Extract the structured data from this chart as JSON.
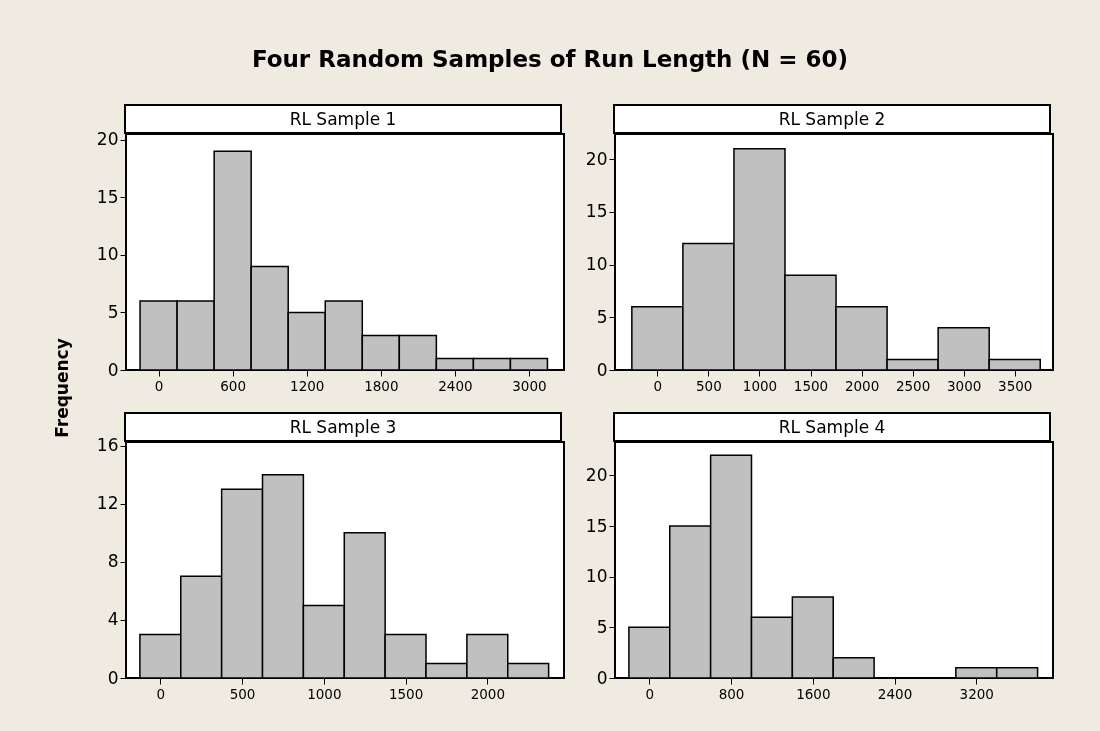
{
  "chart_data": [
    {
      "type": "histogram",
      "title": "RL Sample 1",
      "ylabel": "Frequency",
      "annotations": [
        "Four Random Samples of Run Length (N = 60)"
      ],
      "bins": [
        -150,
        150,
        450,
        750,
        1050,
        1350,
        1650,
        1950,
        2250,
        2550,
        2850,
        3150
      ],
      "values": [
        6,
        6,
        19,
        9,
        5,
        6,
        3,
        3,
        1,
        1,
        1
      ],
      "color": "#c0c0c0",
      "xlim": [
        -264,
        3284
      ],
      "ylim": [
        0,
        20.5
      ],
      "xticks": [
        0,
        600,
        1200,
        1800,
        2400,
        3000
      ],
      "yticks": [
        0,
        5,
        10,
        15,
        20
      ]
    },
    {
      "type": "histogram",
      "title": "RL Sample 2",
      "bins": [
        -250,
        250,
        750,
        1250,
        1750,
        2250,
        2750,
        3250,
        3750
      ],
      "values": [
        6,
        12,
        21,
        9,
        6,
        1,
        4,
        1
      ],
      "color": "#c0c0c0",
      "xlim": [
        -415,
        3875
      ],
      "ylim": [
        0,
        22.4
      ],
      "xticks": [
        0,
        500,
        1000,
        1500,
        2000,
        2500,
        3000,
        3500
      ],
      "yticks": [
        0,
        5,
        10,
        15,
        20
      ]
    },
    {
      "type": "histogram",
      "title": "RL Sample 3",
      "bins": [
        -125,
        125,
        375,
        625,
        875,
        1125,
        1375,
        1625,
        1875,
        2125,
        2375
      ],
      "values": [
        3,
        7,
        13,
        14,
        5,
        10,
        3,
        1,
        3,
        1
      ],
      "color": "#c0c0c0",
      "xlim": [
        -210,
        2469
      ],
      "ylim": [
        0,
        16.25
      ],
      "xticks": [
        0,
        500,
        1000,
        1500,
        2000
      ],
      "yticks": [
        0,
        4,
        8,
        12,
        16
      ]
    },
    {
      "type": "histogram",
      "title": "RL Sample 4",
      "bins": [
        -200,
        200,
        600,
        1000,
        1400,
        1800,
        2200,
        2600,
        3000,
        3400,
        3800
      ],
      "values": [
        5,
        15,
        22,
        6,
        8,
        2,
        0,
        0,
        1,
        1
      ],
      "color": "#c0c0c0",
      "xlim": [
        -336,
        3951
      ],
      "ylim": [
        0,
        23.3
      ],
      "xticks": [
        0,
        800,
        1600,
        2400,
        3200
      ],
      "yticks": [
        0,
        5,
        10,
        15,
        20
      ]
    }
  ]
}
